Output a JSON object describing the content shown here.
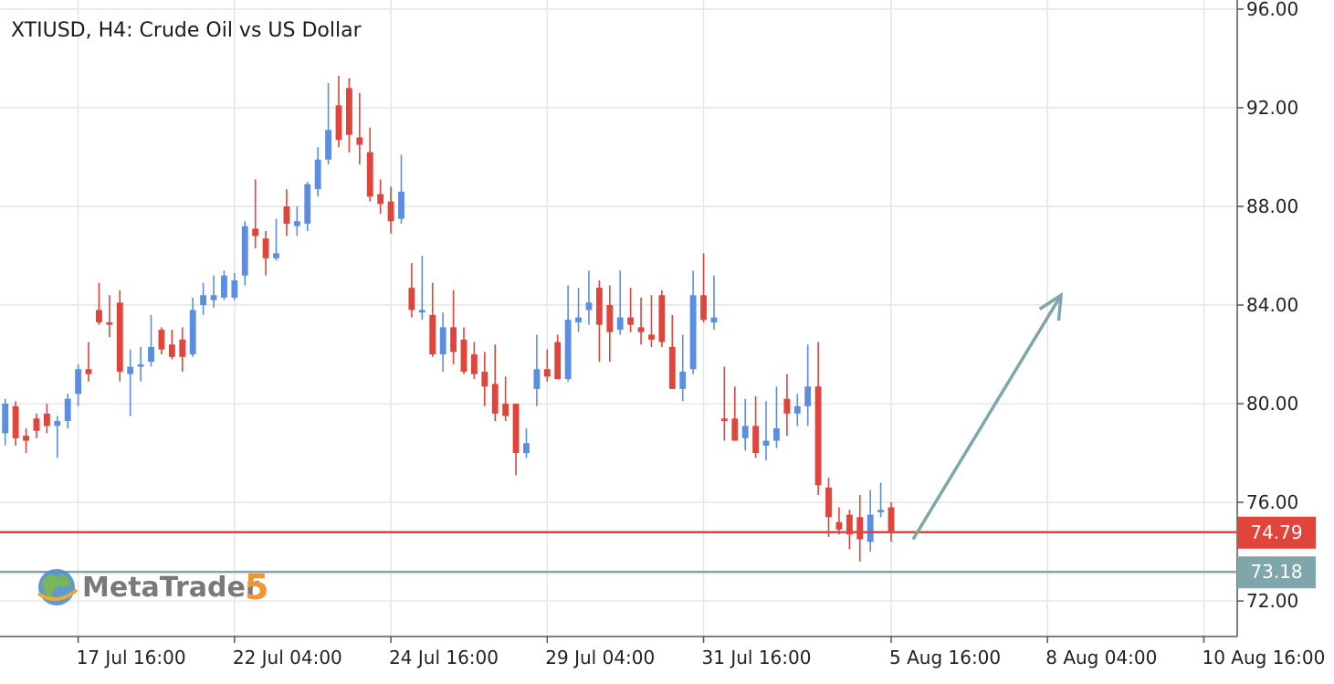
{
  "chart_data": {
    "type": "candlestick",
    "title": "XTIUSD, H4: Crude Oil vs US Dollar",
    "watermark": {
      "name": "MetaTrader",
      "version": "5"
    },
    "categories": [
      null,
      null,
      null,
      null,
      null,
      null,
      null,
      null,
      null,
      null,
      null,
      null,
      null,
      null,
      null,
      null,
      null,
      null,
      null,
      null,
      null,
      null,
      null,
      null,
      null,
      null,
      null,
      null,
      null,
      null,
      null,
      null,
      null,
      null,
      null,
      null,
      null,
      null,
      null,
      null,
      null,
      null,
      null,
      null,
      null,
      null,
      null,
      null,
      null,
      null,
      null,
      null,
      null,
      null,
      null,
      null,
      null,
      null,
      null,
      null,
      null,
      null,
      null,
      null,
      null,
      null,
      null,
      null,
      null,
      null,
      null,
      null,
      null,
      null,
      null,
      null,
      null,
      null,
      null,
      null,
      null,
      null,
      null,
      null,
      null,
      null
    ],
    "series": {
      "up_color": "#5b8ee3",
      "down_color": "#e0443b",
      "open": [
        78.8,
        79.9,
        78.7,
        79.4,
        79.6,
        79.1,
        79.3,
        80.4,
        81.4,
        83.8,
        83.3,
        84.1,
        81.2,
        81.5,
        81.7,
        83.0,
        82.4,
        82.6,
        82.0,
        84.0,
        84.2,
        84.3,
        84.3,
        85.2,
        87.1,
        86.7,
        85.9,
        88.0,
        87.2,
        87.3,
        88.7,
        89.9,
        92.1,
        92.8,
        90.8,
        90.2,
        88.5,
        88.2,
        87.5,
        84.7,
        83.7,
        83.6,
        82.0,
        83.1,
        82.6,
        82.0,
        81.3,
        80.8,
        80.0,
        80.0,
        78.0,
        80.6,
        81.4,
        82.5,
        81.0,
        83.3,
        83.8,
        84.7,
        84.0,
        83.0,
        83.5,
        83.1,
        82.8,
        84.4,
        82.3,
        80.6,
        81.4,
        84.4,
        83.3,
        79.4,
        79.4,
        78.6,
        79.1,
        78.3,
        78.5,
        80.2,
        79.6,
        79.9,
        80.7,
        76.6,
        75.2,
        75.5,
        75.4,
        74.4,
        75.6,
        75.8
      ],
      "high": [
        80.2,
        80.1,
        79.0,
        79.6,
        80.0,
        79.5,
        80.4,
        81.6,
        82.5,
        84.9,
        84.4,
        84.6,
        82.2,
        82.3,
        83.6,
        83.1,
        83.0,
        83.1,
        84.3,
        84.9,
        85.2,
        85.4,
        85.3,
        87.4,
        89.1,
        87.0,
        87.5,
        88.7,
        88.0,
        89.0,
        90.4,
        93.0,
        93.3,
        93.2,
        92.6,
        91.2,
        89.1,
        88.8,
        90.1,
        85.7,
        86.0,
        84.9,
        83.7,
        84.6,
        83.1,
        82.5,
        82.1,
        82.4,
        81.1,
        80.0,
        79.0,
        82.8,
        82.2,
        82.8,
        84.8,
        84.7,
        85.4,
        85.0,
        84.8,
        85.4,
        84.7,
        84.3,
        84.4,
        84.6,
        83.6,
        82.8,
        85.4,
        86.1,
        85.2,
        81.5,
        80.7,
        80.2,
        80.3,
        80.1,
        80.7,
        81.2,
        80.4,
        82.4,
        82.5,
        77.0,
        75.8,
        75.7,
        76.3,
        76.5,
        76.8,
        76.0
      ],
      "low": [
        78.3,
        78.3,
        78.0,
        78.6,
        78.8,
        77.8,
        79.0,
        79.9,
        80.9,
        83.2,
        82.7,
        80.9,
        79.5,
        80.9,
        81.5,
        82.0,
        81.8,
        81.3,
        81.9,
        83.6,
        83.9,
        84.2,
        84.2,
        84.8,
        86.3,
        85.2,
        85.8,
        86.8,
        86.8,
        87.0,
        88.4,
        89.7,
        90.4,
        90.2,
        89.7,
        88.2,
        87.7,
        86.9,
        87.3,
        83.5,
        83.4,
        81.9,
        81.3,
        81.6,
        81.2,
        81.0,
        79.9,
        79.3,
        79.3,
        77.1,
        77.8,
        79.9,
        80.9,
        81.0,
        80.9,
        82.9,
        83.2,
        81.7,
        81.7,
        82.8,
        82.9,
        82.4,
        82.3,
        82.3,
        80.6,
        80.1,
        81.2,
        83.3,
        83.0,
        78.5,
        78.5,
        78.1,
        77.8,
        77.7,
        78.2,
        78.7,
        79.1,
        79.1,
        76.3,
        74.6,
        74.7,
        74.1,
        73.6,
        74.0,
        75.4,
        74.4
      ],
      "close": [
        80.0,
        78.6,
        78.5,
        78.9,
        79.1,
        79.3,
        80.2,
        81.4,
        81.2,
        83.3,
        83.2,
        81.3,
        81.5,
        81.6,
        82.3,
        82.2,
        81.9,
        81.9,
        83.8,
        84.4,
        84.4,
        85.2,
        85.0,
        87.2,
        86.8,
        85.9,
        86.1,
        87.3,
        87.4,
        88.9,
        89.9,
        91.1,
        90.7,
        90.9,
        90.5,
        88.4,
        88.1,
        87.4,
        88.6,
        83.8,
        83.8,
        82.0,
        83.1,
        82.1,
        81.3,
        81.2,
        80.7,
        79.6,
        79.5,
        78.0,
        78.4,
        81.4,
        81.1,
        81.0,
        83.4,
        83.5,
        84.1,
        83.2,
        82.9,
        83.5,
        83.2,
        82.9,
        82.6,
        82.5,
        80.6,
        81.3,
        84.4,
        83.4,
        83.5,
        79.3,
        78.5,
        79.1,
        78.0,
        78.5,
        79.0,
        79.6,
        79.9,
        80.7,
        76.7,
        75.4,
        74.9,
        74.7,
        74.5,
        75.5,
        75.7,
        74.79
      ]
    },
    "price_lines": [
      {
        "value": 74.79,
        "color": "#e0443b"
      },
      {
        "value": 73.18,
        "color": "#7fa6ab"
      }
    ],
    "arrow": {
      "x": [
        87.1,
        101.3
      ],
      "y": [
        74.5,
        84.4
      ],
      "color": "#7fa6ab"
    },
    "xlim": [
      -0.5,
      118.2
    ],
    "ylim": [
      70.56,
      96.37
    ],
    "xticks": [
      {
        "value": 7,
        "label": "17 Jul 16:00"
      },
      {
        "value": 22,
        "label": "22 Jul 04:00"
      },
      {
        "value": 37,
        "label": "24 Jul 16:00"
      },
      {
        "value": 52,
        "label": "29 Jul 04:00"
      },
      {
        "value": 67,
        "label": "31 Jul 16:00"
      },
      {
        "value": 85,
        "label": "5 Aug 16:00"
      },
      {
        "value": 100,
        "label": "8 Aug 04:00"
      },
      {
        "value": 115,
        "label": "10 Aug 16:00"
      }
    ],
    "yticks": [
      {
        "value": 72,
        "label": "72.00"
      },
      {
        "value": 76,
        "label": "76.00"
      },
      {
        "value": 80,
        "label": "80.00"
      },
      {
        "value": 84,
        "label": "84.00"
      },
      {
        "value": 88,
        "label": "88.00"
      },
      {
        "value": 92,
        "label": "92.00"
      },
      {
        "value": 96,
        "label": "96.00"
      }
    ],
    "grid": true
  }
}
